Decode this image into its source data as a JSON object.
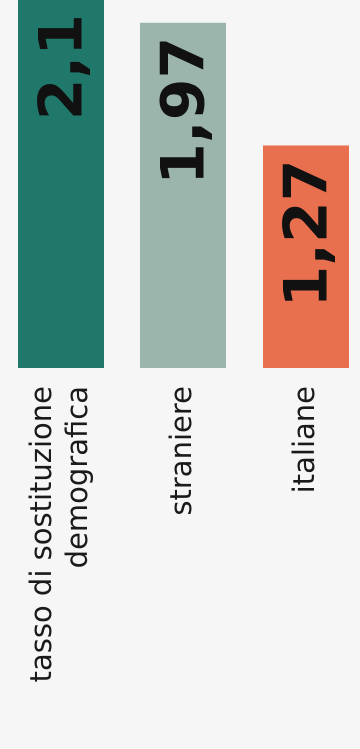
{
  "chart_data": {
    "type": "bar",
    "categories": [
      [
        "tasso di sostituzione",
        "demografica"
      ],
      [
        "straniere"
      ],
      [
        "italiane"
      ]
    ],
    "values": [
      2.1,
      1.97,
      1.27
    ],
    "value_labels": [
      "2,1",
      "1,97",
      "1,27"
    ],
    "colors": [
      "#20786a",
      "#9cb5ac",
      "#e8704e"
    ],
    "ylim": [
      0,
      2.1
    ],
    "grid": false,
    "legend": "none"
  }
}
